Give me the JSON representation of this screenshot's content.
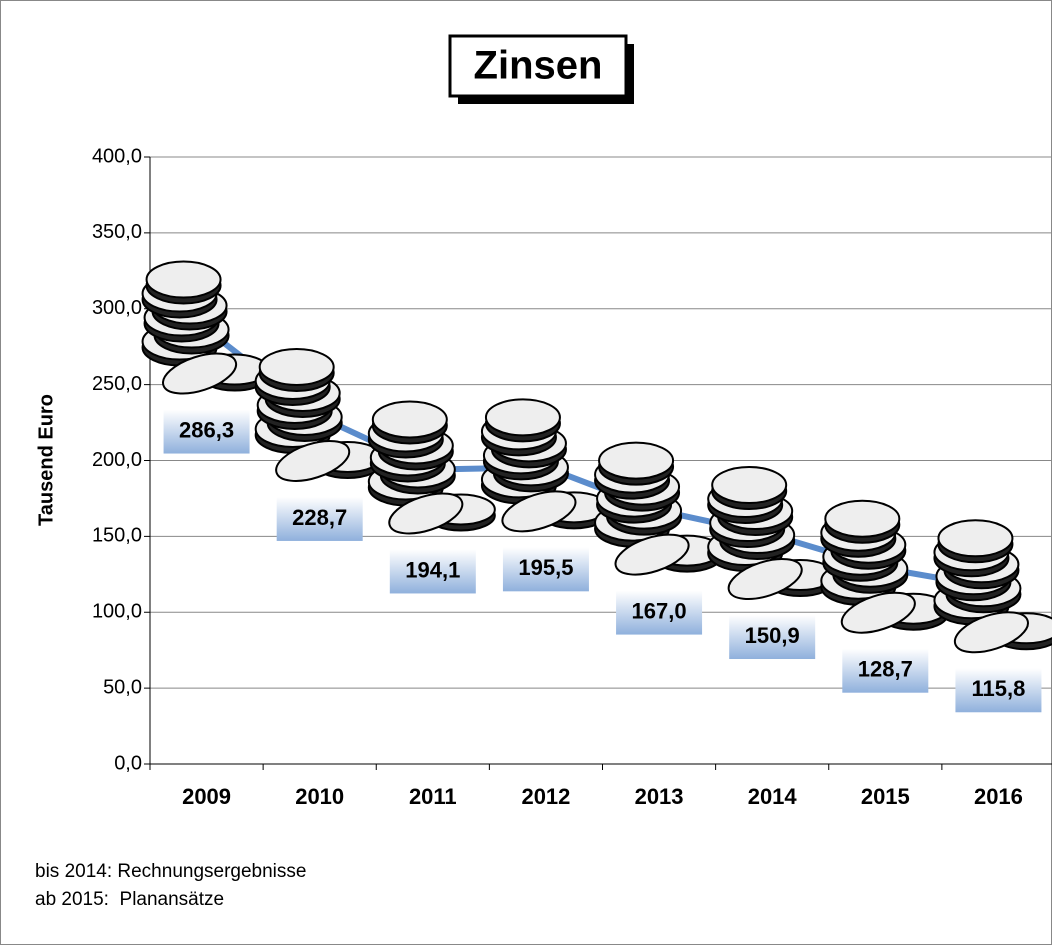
{
  "chart_data": {
    "type": "line",
    "title": "Zinsen",
    "y_label": "Tausend Euro",
    "categories": [
      "2009",
      "2010",
      "2011",
      "2012",
      "2013",
      "2014",
      "2015",
      "2016"
    ],
    "series": [
      {
        "name": "Zinsen",
        "color": "#5b8ccc",
        "values": [
          286.3,
          228.7,
          194.1,
          195.5,
          167.0,
          150.9,
          128.7,
          115.8
        ],
        "value_labels": [
          "286,3",
          "228,7",
          "194,1",
          "195,5",
          "167,0",
          "150,9",
          "128,7",
          "115,8"
        ]
      }
    ],
    "ylim": [
      0,
      400
    ],
    "yticks": [
      {
        "value": 0,
        "label": "0,0"
      },
      {
        "value": 50,
        "label": "50,0"
      },
      {
        "value": 100,
        "label": "100,0"
      },
      {
        "value": 150,
        "label": "150,0"
      },
      {
        "value": 200,
        "label": "200,0"
      },
      {
        "value": 250,
        "label": "250,0"
      },
      {
        "value": 300,
        "label": "300,0"
      },
      {
        "value": 350,
        "label": "350,0"
      },
      {
        "value": 400,
        "label": "400,0"
      }
    ],
    "grid": true,
    "notes": [
      "bis 2014: Rechnungsergebnisse",
      "ab 2015:  Planansätze"
    ]
  }
}
